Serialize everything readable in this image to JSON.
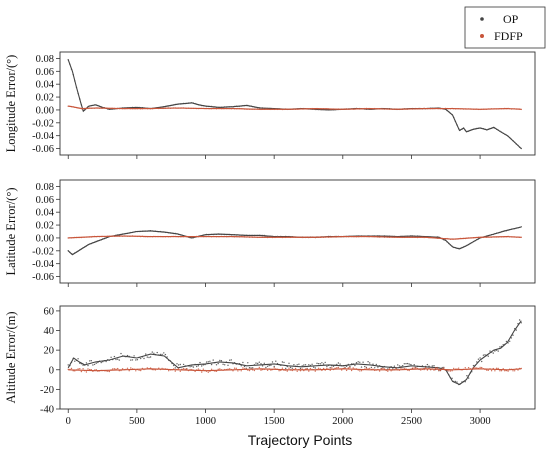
{
  "chart_data": {
    "type": "line",
    "xlabel": "Trajectory Points",
    "xlim": [
      -60,
      3400
    ],
    "xticks": [
      0,
      500,
      1000,
      1500,
      2000,
      2500,
      3000
    ],
    "legend": {
      "placement": "top-right",
      "entries": [
        {
          "label": "OP",
          "color": "#444444"
        },
        {
          "label": "FDFP",
          "color": "#c8553a"
        }
      ]
    },
    "panels": [
      {
        "ylabel": "Longitude Error/(°)",
        "ylim": [
          -0.07,
          0.09
        ],
        "yticks": [
          "0.08",
          "0.06",
          "0.04",
          "0.02",
          "0.00",
          "-0.02",
          "-0.04",
          "-0.06"
        ],
        "series": [
          {
            "name": "OP",
            "x": [
              0,
              30,
              60,
              90,
              110,
              150,
              200,
              250,
              300,
              400,
              500,
              600,
              700,
              800,
              900,
              950,
              1000,
              1100,
              1200,
              1300,
              1400,
              1500,
              1600,
              1700,
              1800,
              1900,
              2000,
              2100,
              2200,
              2300,
              2400,
              2500,
              2600,
              2700,
              2750,
              2800,
              2850,
              2880,
              2900,
              2950,
              3000,
              3050,
              3100,
              3150,
              3200,
              3250,
              3300
            ],
            "y": [
              0.078,
              0.06,
              0.035,
              0.012,
              -0.002,
              0.006,
              0.008,
              0.004,
              0.001,
              0.003,
              0.004,
              0.002,
              0.005,
              0.009,
              0.011,
              0.008,
              0.006,
              0.004,
              0.005,
              0.007,
              0.003,
              0.002,
              0.001,
              0.002,
              0.001,
              0.0,
              0.001,
              0.002,
              0.001,
              0.002,
              0.001,
              0.002,
              0.002,
              0.003,
              0.001,
              -0.008,
              -0.032,
              -0.028,
              -0.034,
              -0.03,
              -0.028,
              -0.031,
              -0.027,
              -0.034,
              -0.04,
              -0.05,
              -0.06
            ]
          },
          {
            "name": "FDFP",
            "x": [
              0,
              100,
              200,
              400,
              600,
              800,
              1000,
              1200,
              1400,
              1600,
              1800,
              2000,
              2200,
              2400,
              2600,
              2800,
              3000,
              3200,
              3300
            ],
            "y": [
              0.006,
              0.002,
              0.003,
              0.002,
              0.002,
              0.003,
              0.002,
              0.002,
              0.001,
              0.001,
              0.002,
              0.001,
              0.002,
              0.001,
              0.002,
              0.002,
              0.001,
              0.002,
              0.001
            ]
          }
        ]
      },
      {
        "ylabel": "Latitude Error/(°)",
        "ylim": [
          -0.07,
          0.09
        ],
        "yticks": [
          "0.08",
          "0.06",
          "0.04",
          "0.02",
          "0.00",
          "-0.02",
          "-0.04",
          "-0.06"
        ],
        "series": [
          {
            "name": "OP",
            "x": [
              0,
              30,
              60,
              90,
              150,
              200,
              300,
              400,
              500,
              600,
              700,
              800,
              850,
              900,
              1000,
              1100,
              1200,
              1300,
              1400,
              1500,
              1600,
              1700,
              1800,
              1900,
              2000,
              2100,
              2200,
              2300,
              2400,
              2500,
              2600,
              2700,
              2750,
              2800,
              2850,
              2900,
              2950,
              3000,
              3100,
              3200,
              3300
            ],
            "y": [
              -0.02,
              -0.026,
              -0.022,
              -0.018,
              -0.01,
              -0.006,
              0.002,
              0.006,
              0.01,
              0.011,
              0.009,
              0.006,
              0.003,
              0.0,
              0.005,
              0.006,
              0.005,
              0.004,
              0.004,
              0.002,
              0.002,
              0.001,
              0.001,
              0.002,
              0.002,
              0.003,
              0.003,
              0.003,
              0.002,
              0.003,
              0.002,
              0.001,
              -0.004,
              -0.014,
              -0.017,
              -0.012,
              -0.006,
              0.0,
              0.006,
              0.012,
              0.017
            ]
          },
          {
            "name": "FDFP",
            "x": [
              0,
              200,
              400,
              600,
              800,
              1000,
              1200,
              1400,
              1600,
              1800,
              2000,
              2200,
              2400,
              2600,
              2800,
              3000,
              3200,
              3300
            ],
            "y": [
              0.0,
              0.002,
              0.003,
              0.002,
              0.002,
              0.002,
              0.002,
              0.001,
              0.001,
              0.001,
              0.002,
              0.002,
              0.001,
              0.001,
              -0.002,
              0.001,
              0.002,
              0.001
            ]
          }
        ]
      },
      {
        "ylabel": "Altitude Error/(m)",
        "ylim": [
          -40,
          65
        ],
        "yticks": [
          "60",
          "40",
          "20",
          "0",
          "-20",
          "-40"
        ],
        "series": [
          {
            "name": "OP",
            "x": [
              0,
              40,
              80,
              120,
              200,
              300,
              400,
              500,
              600,
              700,
              800,
              900,
              1000,
              1100,
              1200,
              1300,
              1400,
              1500,
              1600,
              1700,
              1800,
              1900,
              2000,
              2100,
              2200,
              2300,
              2400,
              2500,
              2600,
              2700,
              2750,
              2800,
              2850,
              2900,
              2950,
              3000,
              3050,
              3100,
              3150,
              3200,
              3250,
              3300
            ],
            "y": [
              2,
              12,
              8,
              5,
              8,
              10,
              14,
              12,
              16,
              14,
              2,
              5,
              6,
              8,
              7,
              4,
              5,
              6,
              4,
              3,
              4,
              5,
              4,
              6,
              5,
              3,
              2,
              4,
              3,
              2,
              0,
              -12,
              -15,
              -10,
              2,
              10,
              15,
              20,
              22,
              28,
              40,
              50
            ]
          },
          {
            "name": "FDFP",
            "x": [
              0,
              200,
              400,
              600,
              800,
              1000,
              1200,
              1400,
              1600,
              1800,
              2000,
              2200,
              2400,
              2600,
              2800,
              3000,
              3200,
              3300
            ],
            "y": [
              0,
              -1,
              0,
              1,
              0,
              -1,
              0,
              1,
              0,
              0,
              1,
              0,
              0,
              1,
              0,
              1,
              0,
              1
            ]
          }
        ]
      }
    ]
  }
}
